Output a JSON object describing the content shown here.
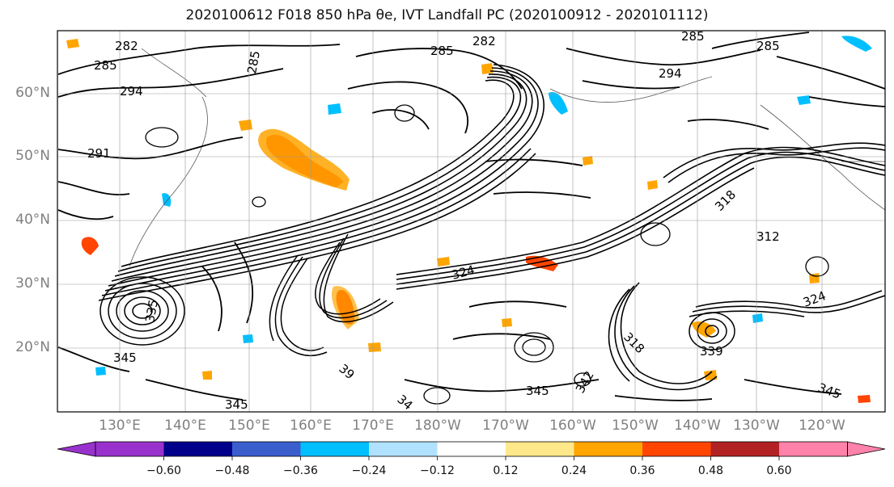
{
  "title": "2020100612 F018 850 hPa θe, IVT Landfall PC (2020100912 - 2020101112)",
  "map": {
    "lat_labels": [
      "60°N",
      "50°N",
      "40°N",
      "30°N",
      "20°N"
    ],
    "lon_labels": [
      "130°E",
      "140°E",
      "150°E",
      "160°E",
      "170°E",
      "180°W",
      "170°W",
      "160°W",
      "150°W",
      "140°W",
      "130°W",
      "120°W"
    ],
    "contour_labels": [
      "282",
      "285",
      "294",
      "285",
      "285",
      "282",
      "291",
      "294",
      "285",
      "285",
      "324",
      "318",
      "312",
      "324",
      "345",
      "345",
      "345",
      "342",
      "345",
      "318",
      "339",
      "335",
      "39",
      "34"
    ],
    "contour_color": "#000000"
  },
  "colorbar": {
    "tick_labels": [
      "−0.60",
      "−0.48",
      "−0.36",
      "−0.24",
      "−0.12",
      "0.12",
      "0.24",
      "0.36",
      "0.48",
      "0.60"
    ],
    "colors": [
      "#9932cc",
      "#00008b",
      "#3a5fcd",
      "#00bfff",
      "#b0e2ff",
      "#ffffff",
      "#ffe88a",
      "#ffa500",
      "#ff4500",
      "#b22222",
      "#ff82ab"
    ]
  }
}
